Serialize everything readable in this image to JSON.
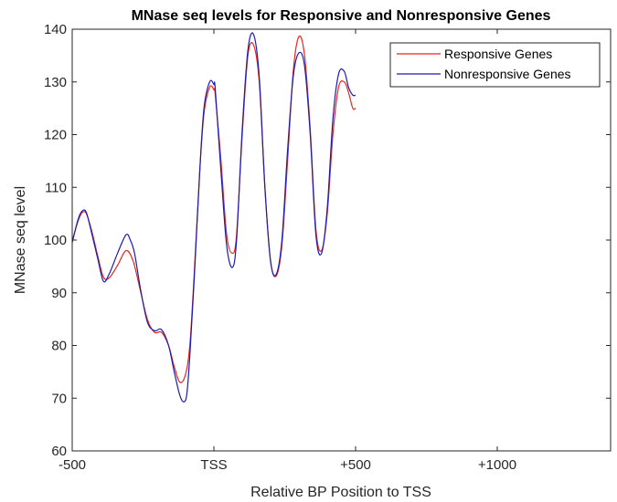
{
  "chart_data": {
    "type": "line",
    "title": "MNase seq levels for Responsive and Nonresponsive Genes",
    "xlabel": "Relative BP Position to TSS",
    "ylabel": "MNase seq level",
    "xlim": [
      -500,
      1400
    ],
    "ylim": [
      60,
      140
    ],
    "x_ticks": [
      {
        "value": -500,
        "label": "-500"
      },
      {
        "value": 0,
        "label": "TSS"
      },
      {
        "value": 500,
        "label": "+500"
      },
      {
        "value": 1000,
        "label": "+1000"
      }
    ],
    "y_ticks": [
      {
        "value": 60,
        "label": "60"
      },
      {
        "value": 70,
        "label": "70"
      },
      {
        "value": 80,
        "label": "80"
      },
      {
        "value": 90,
        "label": "90"
      },
      {
        "value": 100,
        "label": "100"
      },
      {
        "value": 110,
        "label": "110"
      },
      {
        "value": 120,
        "label": "120"
      },
      {
        "value": 130,
        "label": "130"
      },
      {
        "value": 140,
        "label": "140"
      }
    ],
    "legend_position": "top-right",
    "series": [
      {
        "name": "Responsive Genes",
        "color": "#e8251c",
        "x": [
          -500,
          -480,
          -465,
          -450,
          -430,
          -410,
          -390,
          -370,
          -340,
          -310,
          -285,
          -260,
          -235,
          -210,
          -185,
          -160,
          -140,
          -120,
          -100,
          -85,
          -70,
          -50,
          -35,
          -15,
          0,
          5,
          25,
          45,
          65,
          80,
          100,
          120,
          140,
          160,
          180,
          200,
          220,
          240,
          260,
          280,
          300,
          320,
          340,
          360,
          380,
          400,
          420,
          440,
          460,
          475,
          490,
          500
        ],
        "values": [
          99.8,
          103.5,
          105.2,
          105.0,
          101.5,
          97.0,
          93.0,
          92.8,
          95.2,
          98.0,
          96.0,
          90.5,
          85.0,
          82.5,
          82.5,
          80.0,
          76.0,
          73.0,
          74.5,
          80.0,
          93.0,
          113.0,
          124.0,
          129.0,
          128.5,
          127.5,
          115.0,
          101.0,
          97.5,
          101.0,
          120.0,
          135.0,
          137.0,
          130.0,
          110.0,
          96.0,
          93.2,
          99.0,
          115.0,
          132.0,
          138.6,
          135.0,
          121.0,
          102.0,
          98.0,
          105.0,
          120.0,
          129.0,
          130.0,
          128.0,
          125.0,
          125.0
        ]
      },
      {
        "name": "Nonresponsive Genes",
        "color": "#1d1bb0",
        "x": [
          -500,
          -480,
          -465,
          -450,
          -430,
          -410,
          -390,
          -370,
          -340,
          -310,
          -295,
          -280,
          -260,
          -235,
          -210,
          -185,
          -160,
          -140,
          -120,
          -105,
          -95,
          -85,
          -70,
          -50,
          -35,
          -15,
          0,
          5,
          25,
          45,
          65,
          80,
          100,
          120,
          140,
          160,
          180,
          200,
          220,
          240,
          260,
          280,
          300,
          320,
          340,
          360,
          380,
          400,
          420,
          440,
          460,
          475,
          490,
          500
        ],
        "values": [
          99.5,
          103.8,
          105.5,
          105.2,
          101.0,
          96.5,
          92.2,
          93.5,
          97.5,
          101.0,
          100.0,
          97.5,
          91.0,
          84.5,
          82.8,
          83.0,
          80.0,
          75.0,
          70.5,
          69.3,
          71.0,
          78.0,
          92.0,
          113.0,
          125.0,
          130.0,
          129.5,
          128.5,
          113.0,
          99.0,
          94.8,
          100.0,
          121.0,
          136.0,
          139.0,
          131.0,
          110.0,
          96.0,
          93.5,
          100.0,
          117.0,
          131.0,
          135.5,
          133.0,
          120.0,
          101.0,
          97.5,
          106.0,
          123.0,
          131.5,
          132.0,
          129.0,
          127.5,
          127.5
        ]
      }
    ]
  }
}
